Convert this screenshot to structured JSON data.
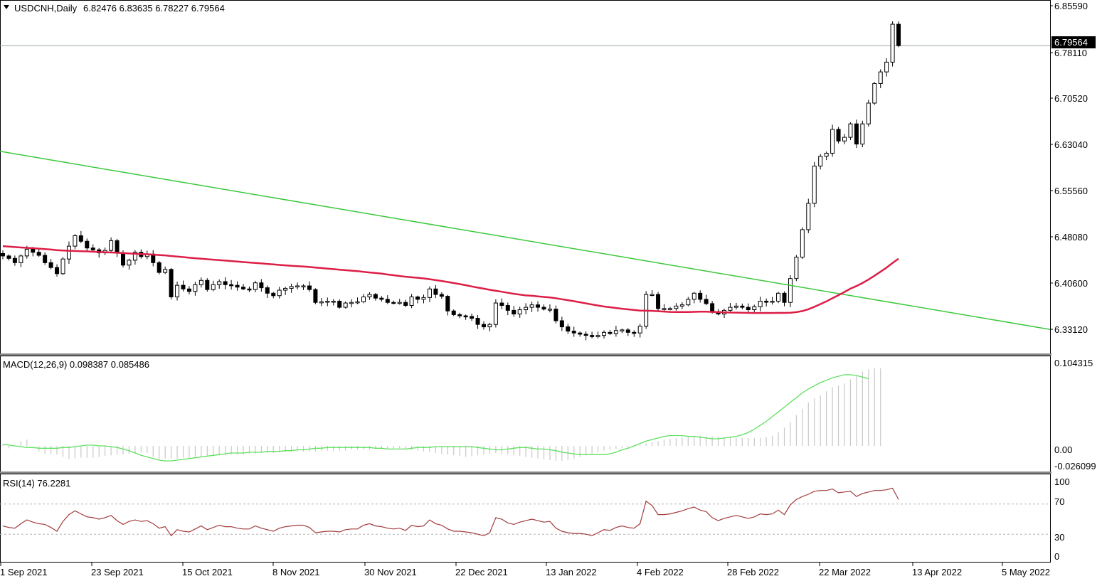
{
  "main": {
    "symbol": "USDCNH,Daily",
    "ohlc": "6.82476 6.83635 6.78227 6.79564",
    "price_labels": [
      "6.85590",
      "6.78110",
      "6.70520",
      "6.63040",
      "6.55560",
      "6.48080",
      "6.40600",
      "6.33120"
    ],
    "current_price": "6.79564"
  },
  "macd": {
    "label": "MACD(12,26,9) 0.098387 0.085486",
    "axis_labels": [
      "0.104315",
      "0.00",
      "-0.026099"
    ]
  },
  "rsi": {
    "label": "RSI(14) 76.2281",
    "axis_labels": [
      "100",
      "70",
      "30",
      "0"
    ]
  },
  "x_axis": {
    "labels": [
      "1 Sep 2021",
      "23 Sep 2021",
      "15 Oct 2021",
      "8 Nov 2021",
      "30 Nov 2021",
      "22 Dec 2021",
      "13 Jan 2022",
      "4 Feb 2022",
      "28 Feb 2022",
      "22 Mar 2022",
      "13 Apr 2022",
      "5 May 2022"
    ]
  },
  "chart_data": [
    {
      "type": "candlestick",
      "title": "USDCNH,Daily",
      "ylim": [
        6.2925,
        6.8683
      ],
      "x_tick_labels": [
        "1 Sep 2021",
        "23 Sep 2021",
        "15 Oct 2021",
        "8 Nov 2021",
        "30 Nov 2021",
        "22 Dec 2021",
        "13 Jan 2022",
        "4 Feb 2022",
        "28 Feb 2022",
        "22 Mar 2022",
        "13 Apr 2022",
        "5 May 2022"
      ],
      "close": [
        6.452,
        6.448,
        6.441,
        6.452,
        6.463,
        6.458,
        6.453,
        6.441,
        6.433,
        6.423,
        6.447,
        6.468,
        6.485,
        6.476,
        6.465,
        6.462,
        6.457,
        6.461,
        6.477,
        6.457,
        6.437,
        6.445,
        6.458,
        6.451,
        6.455,
        6.441,
        6.425,
        6.43,
        6.385,
        6.404,
        6.398,
        6.394,
        6.405,
        6.412,
        6.397,
        6.405,
        6.41,
        6.405,
        6.404,
        6.401,
        6.398,
        6.397,
        6.408,
        6.4,
        6.391,
        6.387,
        6.396,
        6.399,
        6.402,
        6.403,
        6.403,
        6.397,
        6.376,
        6.377,
        6.378,
        6.378,
        6.368,
        6.375,
        6.376,
        6.377,
        6.385,
        6.389,
        6.383,
        6.381,
        6.376,
        6.375,
        6.376,
        6.371,
        6.385,
        6.381,
        6.384,
        6.398,
        6.389,
        6.386,
        6.362,
        6.356,
        6.354,
        6.353,
        6.35,
        6.34,
        6.336,
        6.34,
        6.375,
        6.371,
        6.363,
        6.357,
        6.364,
        6.368,
        6.372,
        6.368,
        6.365,
        6.365,
        6.346,
        6.336,
        6.329,
        6.326,
        6.324,
        6.322,
        6.32,
        6.322,
        6.327,
        6.325,
        6.33,
        6.331,
        6.327,
        6.326,
        6.337,
        6.389,
        6.389,
        6.366,
        6.366,
        6.366,
        6.37,
        6.372,
        6.381,
        6.391,
        6.381,
        6.374,
        6.361,
        6.357,
        6.363,
        6.368,
        6.37,
        6.368,
        6.364,
        6.369,
        6.378,
        6.377,
        6.378,
        6.391,
        6.376,
        6.415,
        6.45,
        6.495,
        6.538,
        6.599,
        6.615,
        6.62,
        6.659,
        6.64,
        6.646,
        6.668,
        6.635,
        6.668,
        6.702,
        6.734,
        6.753,
        6.769,
        6.831,
        6.796
      ]
    },
    {
      "type": "line",
      "title": "MACD(12,26,9) 0.098387 0.085486",
      "ylim": [
        -0.026099,
        0.104315
      ],
      "series": [
        {
          "name": "MACD",
          "values": [
            0.002,
            -0.003,
            0.0,
            0.006,
            0.008,
            0.0,
            -0.007,
            -0.01,
            -0.01,
            -0.011,
            -0.014,
            -0.017,
            -0.016,
            -0.015,
            -0.015,
            -0.015,
            -0.014,
            -0.013,
            -0.012,
            -0.011,
            -0.011,
            -0.01,
            -0.009,
            -0.008,
            -0.009,
            -0.014,
            -0.017,
            -0.016,
            -0.016,
            -0.016,
            -0.015,
            -0.015,
            -0.014,
            -0.014,
            -0.013,
            -0.013,
            -0.012,
            -0.012,
            -0.011,
            -0.011,
            -0.011,
            -0.01,
            -0.01,
            -0.009,
            -0.009,
            -0.009,
            -0.008,
            -0.008,
            -0.007,
            -0.007,
            -0.007,
            -0.007,
            -0.007,
            -0.007,
            -0.006,
            -0.006,
            -0.006,
            -0.006,
            -0.005,
            -0.005,
            -0.005,
            -0.005,
            -0.004,
            -0.004,
            -0.004,
            -0.004,
            -0.003,
            -0.004,
            -0.005,
            -0.006,
            -0.007,
            -0.008,
            -0.009,
            -0.01,
            -0.011,
            -0.012,
            -0.013,
            -0.014,
            -0.013,
            -0.012,
            -0.011,
            -0.01,
            -0.009,
            -0.01,
            -0.011,
            -0.012,
            -0.013,
            -0.014,
            -0.015,
            -0.016,
            -0.017,
            -0.018,
            -0.019,
            -0.019,
            -0.018,
            -0.016,
            -0.014,
            -0.012,
            -0.01,
            -0.008,
            -0.006,
            -0.005,
            -0.004,
            -0.003,
            -0.002,
            0.0,
            0.001,
            0.003,
            0.005,
            0.006,
            0.008,
            0.009,
            0.01,
            0.011,
            0.012,
            0.013,
            0.013,
            0.012,
            0.012,
            0.012,
            0.011,
            0.011,
            0.01,
            0.01,
            0.01,
            0.01,
            0.01,
            0.011,
            0.013,
            0.017,
            0.023,
            0.03,
            0.039,
            0.047,
            0.055,
            0.06,
            0.064,
            0.069,
            0.074,
            0.076,
            0.079,
            0.084,
            0.089,
            0.094,
            0.097,
            0.098,
            0.098
          ]
        },
        {
          "name": "Signal",
          "values": [
            0.002,
            0.001,
            0.0,
            -0.001,
            -0.002,
            -0.002,
            -0.003,
            -0.003,
            -0.003,
            -0.003,
            -0.002,
            -0.002,
            -0.001,
            0.0,
            0.001,
            0.001,
            0.0,
            0.0,
            -0.001,
            -0.002,
            -0.004,
            -0.006,
            -0.009,
            -0.012,
            -0.014,
            -0.016,
            -0.018,
            -0.019,
            -0.019,
            -0.018,
            -0.017,
            -0.016,
            -0.015,
            -0.014,
            -0.013,
            -0.012,
            -0.011,
            -0.01,
            -0.009,
            -0.009,
            -0.009,
            -0.008,
            -0.008,
            -0.008,
            -0.007,
            -0.007,
            -0.007,
            -0.006,
            -0.006,
            -0.005,
            -0.005,
            -0.004,
            -0.003,
            -0.003,
            -0.002,
            -0.002,
            -0.002,
            -0.002,
            -0.002,
            -0.002,
            -0.002,
            -0.002,
            -0.003,
            -0.003,
            -0.004,
            -0.004,
            -0.004,
            -0.004,
            -0.003,
            -0.002,
            -0.002,
            -0.002,
            -0.001,
            -0.001,
            -0.001,
            -0.001,
            -0.001,
            -0.001,
            -0.001,
            -0.002,
            -0.003,
            -0.004,
            -0.005,
            -0.005,
            -0.004,
            -0.003,
            -0.002,
            -0.002,
            -0.003,
            -0.004,
            -0.004,
            -0.005,
            -0.006,
            -0.008,
            -0.009,
            -0.01,
            -0.011,
            -0.011,
            -0.011,
            -0.011,
            -0.011,
            -0.01,
            -0.008,
            -0.005,
            -0.003,
            0.0,
            0.003,
            0.006,
            0.008,
            0.01,
            0.012,
            0.013,
            0.013,
            0.013,
            0.012,
            0.012,
            0.011,
            0.01,
            0.009,
            0.009,
            0.01,
            0.011,
            0.012,
            0.014,
            0.017,
            0.021,
            0.026,
            0.031,
            0.037,
            0.043,
            0.049,
            0.055,
            0.061,
            0.067,
            0.072,
            0.076,
            0.08,
            0.083,
            0.086,
            0.088,
            0.09,
            0.09,
            0.089,
            0.087,
            0.085
          ]
        }
      ]
    },
    {
      "type": "line",
      "title": "RSI(14) 76.2281",
      "ylim": [
        0,
        100
      ],
      "levels": [
        70,
        30
      ],
      "series": [
        {
          "name": "RSI(14)",
          "values": [
            41,
            39,
            38,
            44,
            49,
            46,
            44,
            43,
            39,
            34,
            47,
            56,
            61,
            57,
            53,
            52,
            50,
            52,
            55,
            48,
            43,
            47,
            49,
            47,
            48,
            44,
            38,
            40,
            28,
            36,
            34,
            33,
            37,
            41,
            36,
            39,
            42,
            40,
            40,
            38,
            37,
            37,
            41,
            38,
            36,
            34,
            38,
            40,
            41,
            42,
            42,
            39,
            32,
            33,
            34,
            34,
            33,
            36,
            37,
            37,
            42,
            44,
            41,
            40,
            38,
            37,
            38,
            35,
            42,
            40,
            41,
            49,
            44,
            42,
            37,
            34,
            34,
            33,
            32,
            30,
            28,
            32,
            52,
            50,
            45,
            43,
            46,
            48,
            50,
            48,
            46,
            47,
            38,
            34,
            32,
            31,
            31,
            30,
            28,
            32,
            36,
            35,
            39,
            41,
            39,
            38,
            44,
            74,
            68,
            56,
            56,
            57,
            59,
            61,
            64,
            66,
            62,
            60,
            52,
            48,
            51,
            53,
            55,
            53,
            51,
            53,
            57,
            56,
            57,
            62,
            56,
            69,
            76,
            80,
            83,
            87,
            88,
            88,
            90,
            85,
            86,
            87,
            80,
            84,
            86,
            88,
            88,
            89,
            91,
            76
          ]
        }
      ]
    }
  ]
}
